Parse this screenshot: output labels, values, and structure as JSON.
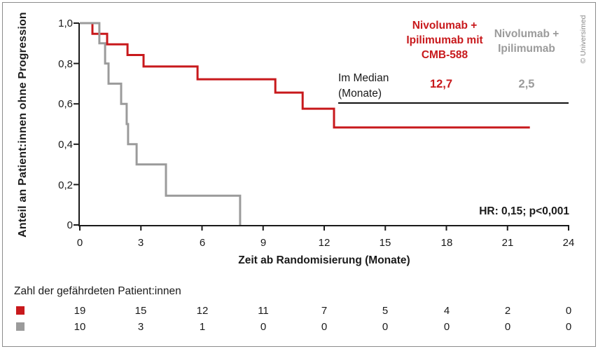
{
  "credit": "© Universimed",
  "chart_data": {
    "type": "line",
    "subtype": "kaplan-meier-step",
    "title": "",
    "xlabel": "Zeit ab Randomisierung (Monate)",
    "ylabel": "Anteil an Patient:innen ohne Progression",
    "xlim": [
      0,
      24
    ],
    "ylim": [
      0,
      1
    ],
    "x_ticks": [
      "0",
      "3",
      "6",
      "9",
      "12",
      "15",
      "18",
      "21",
      "24"
    ],
    "x_tick_values": [
      0,
      3,
      6,
      9,
      12,
      15,
      18,
      21,
      24
    ],
    "y_ticks": [
      "1,0",
      "0,8",
      "0,6",
      "0,4",
      "0,2",
      "0"
    ],
    "y_tick_values": [
      1.0,
      0.8,
      0.6,
      0.4,
      0.2,
      0
    ],
    "grid": false,
    "annotation": "HR: 0,15; p<0,001",
    "series": [
      {
        "name": "Nivolumab + Ipilimumab mit CMB-588",
        "color": "#c8191c",
        "median_months": "12,7",
        "end_month": 22.1,
        "steps": [
          [
            0,
            1.0
          ],
          [
            0.62,
            0.947
          ],
          [
            1.34,
            0.895
          ],
          [
            2.34,
            0.842
          ],
          [
            3.13,
            0.785
          ],
          [
            5.78,
            0.722
          ],
          [
            9.6,
            0.656
          ],
          [
            10.94,
            0.576
          ],
          [
            12.48,
            0.483
          ]
        ]
      },
      {
        "name": "Nivolumab + Ipilimumab",
        "color": "#9b9b9b",
        "median_months": "2,5",
        "end_month": 7.87,
        "steps": [
          [
            0,
            1.0
          ],
          [
            0.96,
            0.9
          ],
          [
            1.24,
            0.8
          ],
          [
            1.41,
            0.7
          ],
          [
            2.03,
            0.6
          ],
          [
            2.3,
            0.5
          ],
          [
            2.37,
            0.4
          ],
          [
            2.79,
            0.3
          ],
          [
            4.23,
            0.145
          ],
          [
            7.87,
            0
          ]
        ]
      }
    ]
  },
  "legend": {
    "arm1_title": "Nivolumab +\nIpilimumab mit\nCMB-588",
    "arm2_title": "Nivolumab +\nIpilimumab",
    "median_label": "Im Median\n(Monate)",
    "arm1_median": "12,7",
    "arm2_median": "2,5"
  },
  "risk_table": {
    "title": "Zahl der gefährdeten Patient:innen",
    "rows": [
      {
        "arm": "Nivolumab + Ipilimumab mit CMB-588",
        "color": "#c8191c",
        "values": [
          "19",
          "15",
          "12",
          "11",
          "7",
          "5",
          "4",
          "2",
          "0"
        ]
      },
      {
        "arm": "Nivolumab + Ipilimumab",
        "color": "#9b9b9b",
        "values": [
          "10",
          "3",
          "1",
          "0",
          "0",
          "0",
          "0",
          "0",
          "0"
        ]
      }
    ]
  },
  "colors": {
    "arm1": "#c8191c",
    "arm2": "#9b9b9b",
    "axis": "#1a1a1a"
  }
}
